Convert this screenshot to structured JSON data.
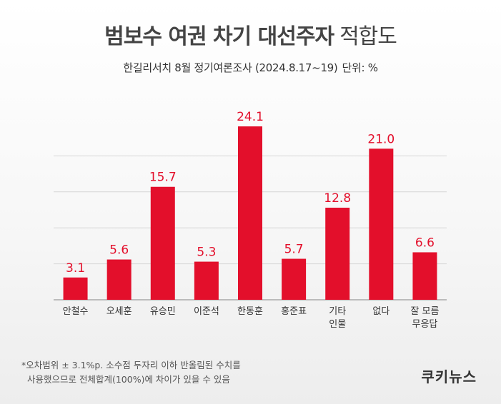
{
  "title": {
    "main": "범보수 여권 차기 대선주자",
    "suffix": "적합도"
  },
  "subtitle": {
    "source": "한길리서치 8월 정기여론조사 (2024.8.17~19)",
    "unit": "단위: %"
  },
  "chart_data": {
    "type": "bar",
    "categories": [
      "안철수",
      "오세훈",
      "유승민",
      "이준석",
      "한동훈",
      "홍준표",
      "기타\n인물",
      "없다",
      "잘 모름\n무응답"
    ],
    "values": [
      3.1,
      5.6,
      15.7,
      5.3,
      24.1,
      5.7,
      12.8,
      21.0,
      6.6
    ],
    "value_labels": [
      "3.1",
      "5.6",
      "15.7",
      "5.3",
      "24.1",
      "5.7",
      "12.8",
      "21.0",
      "6.6"
    ],
    "ylim": [
      0,
      25
    ],
    "grid": true,
    "bar_color": "#e30f2b",
    "label_color": "#e30f2b"
  },
  "footnote": {
    "line1": "*오차범위 ± 3.1%p. 소수점 두자리 이하 반올림된 수치를",
    "line2": "사용했으므로 전체합계(100%)에 차이가 있을 수 있음"
  },
  "logo": "쿠키뉴스"
}
